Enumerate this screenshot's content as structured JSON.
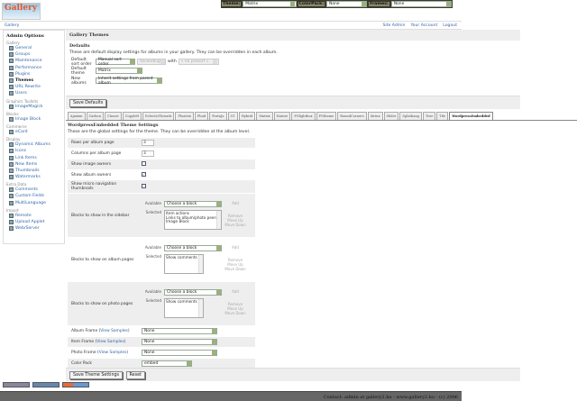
{
  "topbar": {
    "theme_label": "Theme:",
    "theme_value": "Matrix",
    "colorpack_label": "ColorPack:",
    "colorpack_value": "None",
    "frames_label": "Frames:",
    "frames_value": "None"
  },
  "logo": "Gallery",
  "breadcrumb": {
    "home": "Gallery",
    "links": [
      "Site Admin",
      "Your Account",
      "Logout"
    ]
  },
  "sidebar": {
    "title": "Admin Options",
    "groups": [
      {
        "name": "Gallery",
        "items": [
          {
            "label": "General"
          },
          {
            "label": "Groups"
          },
          {
            "label": "Maintenance"
          },
          {
            "label": "Performance"
          },
          {
            "label": "Plugins"
          },
          {
            "label": "Themes",
            "current": true
          },
          {
            "label": "URL Rewrite"
          },
          {
            "label": "Users"
          }
        ]
      },
      {
        "name": "Graphics Toolkits",
        "items": [
          {
            "label": "ImageMagick"
          }
        ]
      },
      {
        "name": "Blocks",
        "items": [
          {
            "label": "Image Block"
          }
        ]
      },
      {
        "name": "Commerce",
        "items": [
          {
            "label": "eCard"
          }
        ]
      },
      {
        "name": "Display",
        "items": [
          {
            "label": "Dynamic Albums"
          },
          {
            "label": "Icons"
          },
          {
            "label": "Link Items"
          },
          {
            "label": "New Items"
          },
          {
            "label": "Thumbnails"
          },
          {
            "label": "Watermarks"
          }
        ]
      },
      {
        "name": "Extra Data",
        "items": [
          {
            "label": "Comments"
          },
          {
            "label": "Custom Fields"
          },
          {
            "label": "MultiLanguage"
          }
        ]
      },
      {
        "name": "Import",
        "items": [
          {
            "label": "Remote"
          },
          {
            "label": "Upload Applet"
          },
          {
            "label": "Web/Server"
          }
        ]
      }
    ]
  },
  "main": {
    "title": "Gallery Themes",
    "defaults": {
      "heading": "Defaults",
      "desc": "These are default display settings for albums in your gallery. They can be overridden in each album.",
      "sort_label": "Default sort order",
      "sort_value": "Manual sort order",
      "sort_dir": "Ascending",
      "with_label": "with",
      "with_value": "« no presort »",
      "theme_label": "Default theme",
      "theme_value": "Matrix",
      "new_label": "New albums",
      "new_value": "Inherit settings from parent album",
      "save": "Save Defaults"
    },
    "tabs": [
      "Ajaxian",
      "Carbon",
      "Classic",
      "Copyleft",
      "EclecticThreads",
      "Floatrix",
      "Fluid",
      "PortaJa",
      "G1",
      "Hybrid",
      "Matrix",
      "Nature",
      "PGlightbox",
      "PGtheme",
      "RoundCorners",
      "Siriux",
      "Slider",
      "Splatbang",
      "Tree",
      "Tile",
      "WordpressEmbedded"
    ],
    "active_tab": "WordpressEmbedded",
    "settings": {
      "heading": "WordpressEmbedded Theme Settings",
      "desc": "These are the global settings for the theme. They can be overridden at the album level.",
      "rows_label": "Rows per album page",
      "rows_value": "3",
      "cols_label": "Columns per album page",
      "cols_value": "3",
      "show_owners_label": "Show image owners",
      "show_owners": false,
      "show_album_owners_label": "Show album owners",
      "show_album_owners": true,
      "micro_label": "Show micro navigation thumbnails",
      "micro": false,
      "available_label": "Available",
      "selected_label": "Selected",
      "choose": "Choose a block",
      "add": "Add",
      "remove": "Remove",
      "up": "Move Up",
      "down": "Move Down",
      "sidebar_label": "Blocks to show in the sidebar",
      "sidebar_selected": [
        "Item actions",
        "Links to album/photo peers",
        "Image Block"
      ],
      "album_label": "Blocks to show on album pages",
      "album_selected": [
        "Show comments"
      ],
      "photo_label": "Blocks to show on photo pages",
      "photo_selected": [
        "Show comments"
      ],
      "album_frame_label": "Album Frame",
      "item_frame_label": "Item Frame",
      "photo_frame_label": "Photo Frame",
      "samples": "View Samples",
      "album_frame": "None",
      "item_frame": "None",
      "photo_frame": "None",
      "colorpack_label": "Color Pack",
      "colorpack": "embed",
      "save": "Save Theme Settings",
      "reset": "Reset"
    }
  },
  "footer": "Contact: admin at gallery2.hu - www.gallery2.hu - (c) 2006"
}
